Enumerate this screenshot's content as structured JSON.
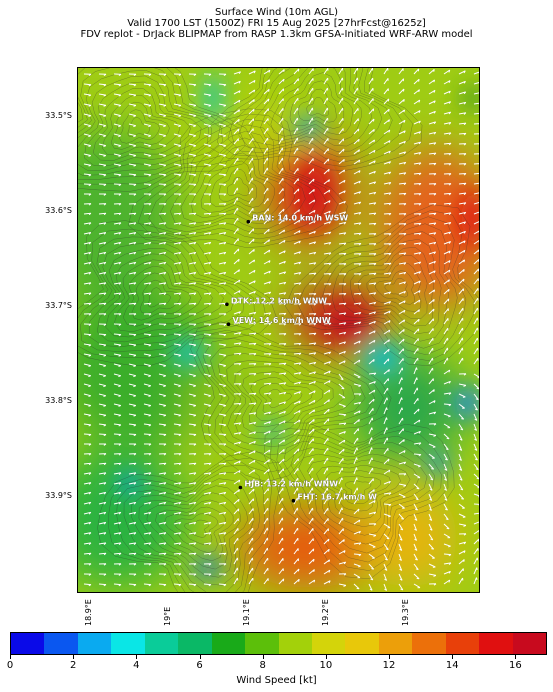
{
  "header": {
    "line1": "Surface Wind (10m AGL)",
    "line2": "Valid 1700 LST (1500Z) FRI 15 Aug 2025 [27hrFcst@1625z]",
    "line3": "FDV replot - DrJack BLIPMAP from RASP 1.3km GFSA-Initiated WRF-ARW model"
  },
  "lat_labels": [
    "33.5°S",
    "33.6°S",
    "33.7°S",
    "33.8°S",
    "33.9°S"
  ],
  "lon_labels": [
    "18.9°E",
    "19°E",
    "19.1°E",
    "19.2°E",
    "19.3°E"
  ],
  "stations": [
    {
      "label": "BAN: 14.0 km/h WSW",
      "lon": 19.1,
      "lat": -33.61
    },
    {
      "label": "DTK: 12.2 km/h WNW",
      "lon": 19.073,
      "lat": -33.697
    },
    {
      "label": "VEW: 14.6 km/h WNW",
      "lon": 19.075,
      "lat": -33.718
    },
    {
      "label": "HJB: 13.2 km/h WNW",
      "lon": 19.09,
      "lat": -33.89
    },
    {
      "label": "FHT: 16.7 km/h W",
      "lon": 19.157,
      "lat": -33.904
    }
  ],
  "colorbar": {
    "label": "Wind Speed [kt]",
    "ticks": [
      "0",
      "2",
      "4",
      "6",
      "8",
      "10",
      "12",
      "14",
      "16"
    ],
    "colors": [
      "#0a0ae8",
      "#0a57f0",
      "#0aaaf0",
      "#0ae6e6",
      "#0acc99",
      "#0ab866",
      "#19aa19",
      "#5cbf0a",
      "#a3d10a",
      "#d4d40a",
      "#e8c80a",
      "#ec9f0a",
      "#ec700a",
      "#e8400a",
      "#e01010",
      "#c80a1e"
    ]
  }
}
